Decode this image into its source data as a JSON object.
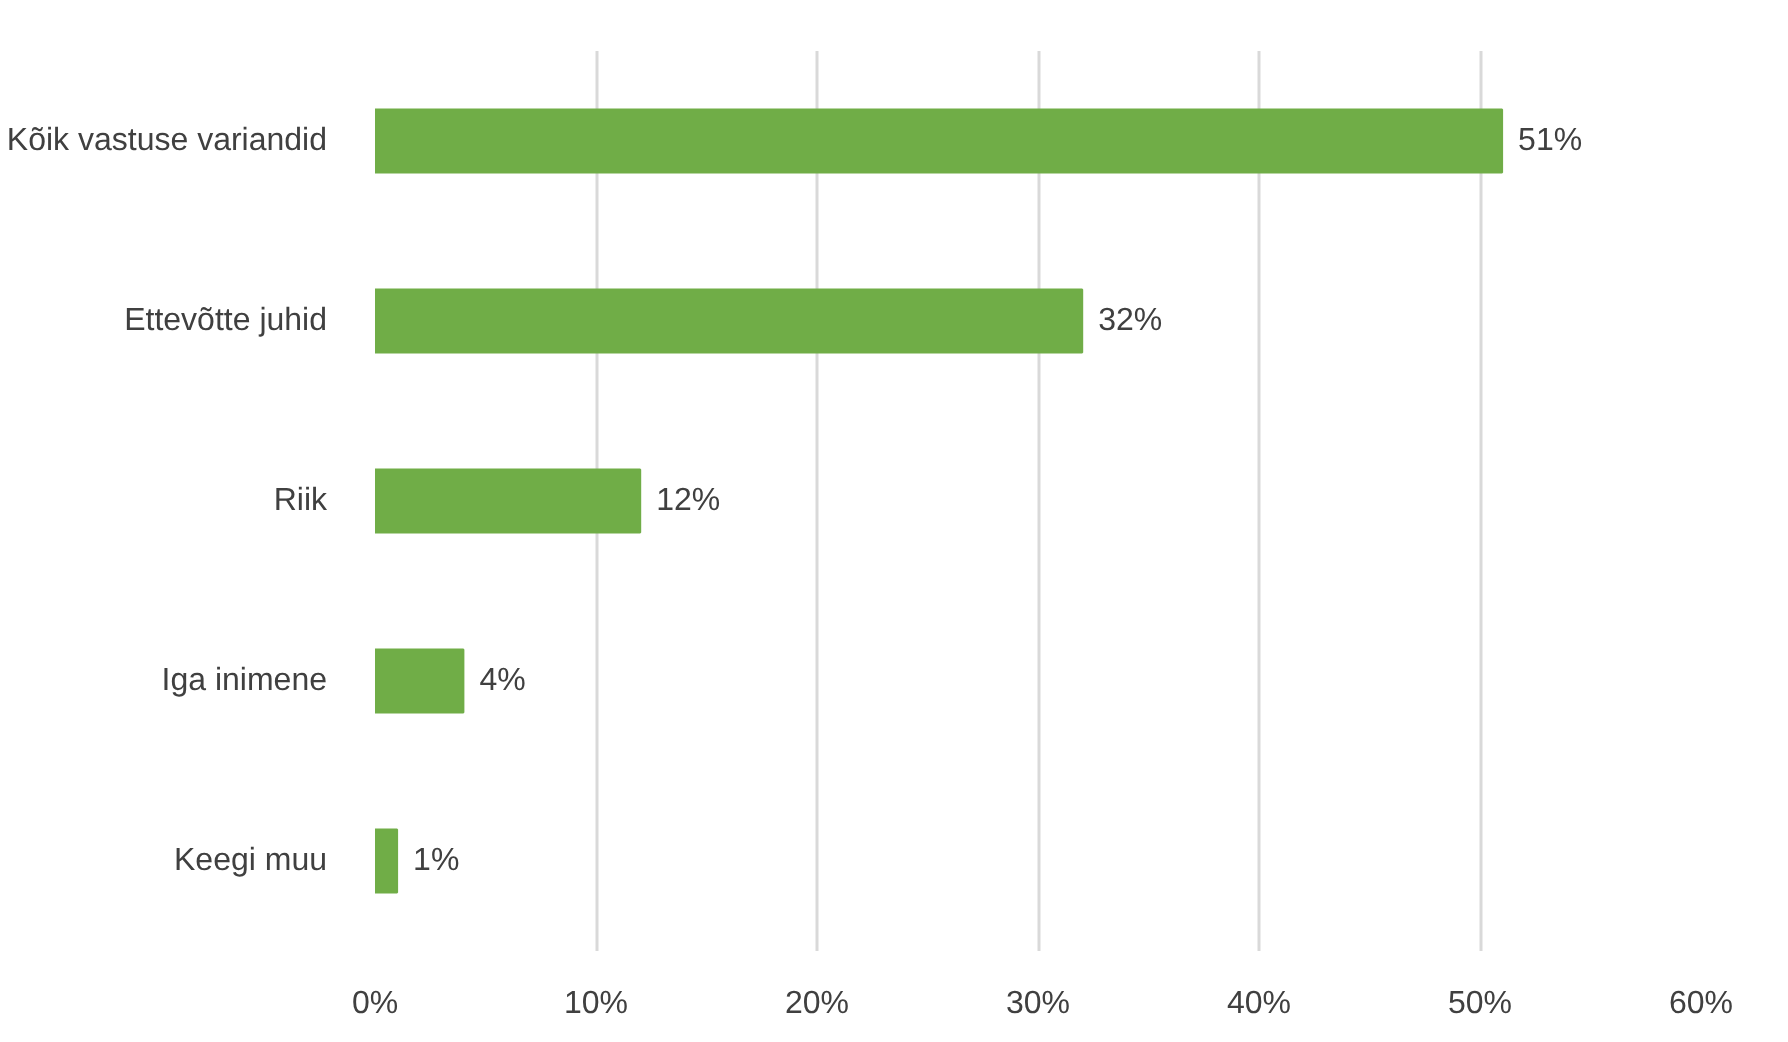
{
  "chart_data": {
    "type": "bar",
    "orientation": "horizontal",
    "categories": [
      "Kõik vastuse variandid",
      "Ettevõtte juhid",
      "Riik",
      "Iga inimene",
      "Keegi muu"
    ],
    "values": [
      51,
      32,
      12,
      4,
      1
    ],
    "value_labels": [
      "51%",
      "32%",
      "12%",
      "4%",
      "1%"
    ],
    "color": "#70ad47",
    "xlim": [
      0,
      60
    ],
    "xticks": [
      {
        "value": 0,
        "label": "0%"
      },
      {
        "value": 10,
        "label": "10%"
      },
      {
        "value": 20,
        "label": "20%"
      },
      {
        "value": 30,
        "label": "30%"
      },
      {
        "value": 40,
        "label": "40%"
      },
      {
        "value": 50,
        "label": "50%"
      },
      {
        "value": 60,
        "label": "60%"
      }
    ],
    "grid": "x"
  }
}
